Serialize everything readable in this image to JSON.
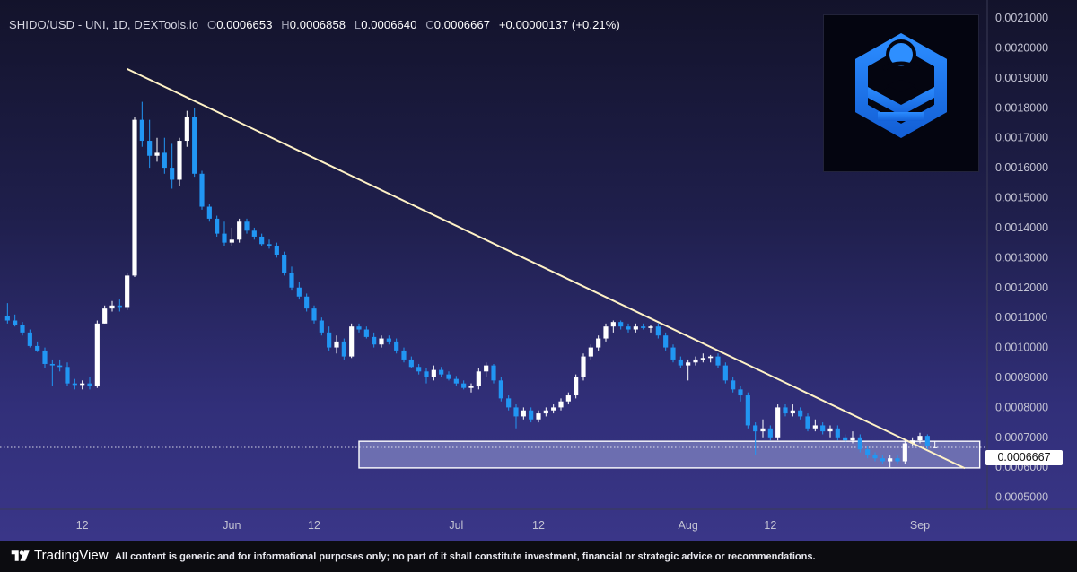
{
  "header": {
    "symbol": "SHIDO/USD - UNI, 1D, DEXTools.io",
    "open_key": "O",
    "open": "0.0006653",
    "high_key": "H",
    "high": "0.0006858",
    "low_key": "L",
    "low": "0.0006640",
    "close_key": "C",
    "close": "0.0006667",
    "change": "+0.00000137 (+0.21%)"
  },
  "current_price_label": "0.0006667",
  "footer": {
    "brand": "TradingView",
    "disclaimer": "All content is generic and for informational purposes only; no part of it shall constitute investment, financial or strategic advice or recommendations."
  },
  "colors": {
    "up": "#ffffff",
    "down": "#2196f3",
    "trendline": "#fff2c6",
    "zone_fill": "#9aa0d8",
    "logo_blue": "#1b7ff0"
  },
  "chart_data": {
    "type": "candlestick",
    "title": "SHIDO/USD - UNI, 1D, DEXTools.io",
    "y_axis": {
      "ylim": [
        0.00046,
        0.00216
      ],
      "ticks": [
        "0.0005000",
        "0.0006000",
        "0.0007000",
        "0.0008000",
        "0.0009000",
        "0.0010000",
        "0.0011000",
        "0.0012000",
        "0.0013000",
        "0.0014000",
        "0.0015000",
        "0.0016000",
        "0.0017000",
        "0.0018000",
        "0.0019000",
        "0.0020000",
        "0.0021000"
      ]
    },
    "x_axis": {
      "ticks": [
        {
          "label": "12",
          "day": 10
        },
        {
          "label": "Jun",
          "day": 30
        },
        {
          "label": "12",
          "day": 41
        },
        {
          "label": "Jul",
          "day": 60
        },
        {
          "label": "12",
          "day": 71
        },
        {
          "label": "Aug",
          "day": 91
        },
        {
          "label": "12",
          "day": 102
        },
        {
          "label": "Sep",
          "day": 122
        }
      ],
      "xlim": [
        -1,
        131
      ]
    },
    "candles": [
      {
        "o": 0.001105,
        "h": 0.001148,
        "l": 0.00108,
        "c": 0.00109
      },
      {
        "o": 0.00109,
        "h": 0.00111,
        "l": 0.00107,
        "c": 0.001075
      },
      {
        "o": 0.001075,
        "h": 0.001085,
        "l": 0.00104,
        "c": 0.00105
      },
      {
        "o": 0.00105,
        "h": 0.00106,
        "l": 0.001,
        "c": 0.001005
      },
      {
        "o": 0.001005,
        "h": 0.00102,
        "l": 0.000985,
        "c": 0.00099
      },
      {
        "o": 0.00099,
        "h": 0.001,
        "l": 0.00093,
        "c": 0.000945
      },
      {
        "o": 0.000945,
        "h": 0.00096,
        "l": 0.00087,
        "c": 0.00094
      },
      {
        "o": 0.00094,
        "h": 0.00096,
        "l": 0.00092,
        "c": 0.000935
      },
      {
        "o": 0.000935,
        "h": 0.00095,
        "l": 0.00087,
        "c": 0.00088
      },
      {
        "o": 0.00088,
        "h": 0.000895,
        "l": 0.00086,
        "c": 0.000875
      },
      {
        "o": 0.000875,
        "h": 0.00089,
        "l": 0.00086,
        "c": 0.00088
      },
      {
        "o": 0.00088,
        "h": 0.0009,
        "l": 0.00086,
        "c": 0.00087
      },
      {
        "o": 0.00087,
        "h": 0.00109,
        "l": 0.000865,
        "c": 0.00108
      },
      {
        "o": 0.00108,
        "h": 0.00114,
        "l": 0.00108,
        "c": 0.00113
      },
      {
        "o": 0.00113,
        "h": 0.001155,
        "l": 0.00112,
        "c": 0.00114
      },
      {
        "o": 0.00114,
        "h": 0.00116,
        "l": 0.00112,
        "c": 0.001135
      },
      {
        "o": 0.001135,
        "h": 0.00125,
        "l": 0.001125,
        "c": 0.00124
      },
      {
        "o": 0.00124,
        "h": 0.00177,
        "l": 0.001235,
        "c": 0.00176
      },
      {
        "o": 0.00176,
        "h": 0.00182,
        "l": 0.00167,
        "c": 0.00169
      },
      {
        "o": 0.00169,
        "h": 0.00176,
        "l": 0.0016,
        "c": 0.00164
      },
      {
        "o": 0.00164,
        "h": 0.0017,
        "l": 0.00162,
        "c": 0.00165
      },
      {
        "o": 0.00165,
        "h": 0.0017,
        "l": 0.00158,
        "c": 0.0016
      },
      {
        "o": 0.0016,
        "h": 0.00168,
        "l": 0.00153,
        "c": 0.00156
      },
      {
        "o": 0.00156,
        "h": 0.0017,
        "l": 0.00154,
        "c": 0.00169
      },
      {
        "o": 0.00169,
        "h": 0.00179,
        "l": 0.00167,
        "c": 0.00177
      },
      {
        "o": 0.00177,
        "h": 0.0018,
        "l": 0.00157,
        "c": 0.00158
      },
      {
        "o": 0.00158,
        "h": 0.00159,
        "l": 0.00146,
        "c": 0.00147
      },
      {
        "o": 0.00147,
        "h": 0.00148,
        "l": 0.00142,
        "c": 0.00143
      },
      {
        "o": 0.00143,
        "h": 0.00144,
        "l": 0.00137,
        "c": 0.00138
      },
      {
        "o": 0.00138,
        "h": 0.00142,
        "l": 0.00134,
        "c": 0.00135
      },
      {
        "o": 0.00135,
        "h": 0.0014,
        "l": 0.00134,
        "c": 0.00136
      },
      {
        "o": 0.00136,
        "h": 0.00143,
        "l": 0.00135,
        "c": 0.00142
      },
      {
        "o": 0.00142,
        "h": 0.00143,
        "l": 0.00138,
        "c": 0.00139
      },
      {
        "o": 0.00139,
        "h": 0.0014,
        "l": 0.00136,
        "c": 0.00137
      },
      {
        "o": 0.00137,
        "h": 0.00138,
        "l": 0.00134,
        "c": 0.001345
      },
      {
        "o": 0.001345,
        "h": 0.00136,
        "l": 0.00133,
        "c": 0.00134
      },
      {
        "o": 0.00134,
        "h": 0.00135,
        "l": 0.0013,
        "c": 0.00131
      },
      {
        "o": 0.00131,
        "h": 0.00132,
        "l": 0.00124,
        "c": 0.00125
      },
      {
        "o": 0.00125,
        "h": 0.00127,
        "l": 0.00119,
        "c": 0.0012
      },
      {
        "o": 0.0012,
        "h": 0.00122,
        "l": 0.00116,
        "c": 0.00117
      },
      {
        "o": 0.00117,
        "h": 0.00118,
        "l": 0.00112,
        "c": 0.00113
      },
      {
        "o": 0.00113,
        "h": 0.00114,
        "l": 0.00108,
        "c": 0.00109
      },
      {
        "o": 0.00109,
        "h": 0.0011,
        "l": 0.00104,
        "c": 0.00105
      },
      {
        "o": 0.00105,
        "h": 0.00107,
        "l": 0.00099,
        "c": 0.001
      },
      {
        "o": 0.001,
        "h": 0.00104,
        "l": 0.00098,
        "c": 0.00102
      },
      {
        "o": 0.00102,
        "h": 0.00103,
        "l": 0.00096,
        "c": 0.00097
      },
      {
        "o": 0.00097,
        "h": 0.00108,
        "l": 0.000965,
        "c": 0.00107
      },
      {
        "o": 0.00107,
        "h": 0.00108,
        "l": 0.00105,
        "c": 0.00106
      },
      {
        "o": 0.00106,
        "h": 0.00107,
        "l": 0.00103,
        "c": 0.001035
      },
      {
        "o": 0.001035,
        "h": 0.00105,
        "l": 0.001,
        "c": 0.00101
      },
      {
        "o": 0.00101,
        "h": 0.00104,
        "l": 0.001,
        "c": 0.00103
      },
      {
        "o": 0.00103,
        "h": 0.00104,
        "l": 0.00101,
        "c": 0.00102
      },
      {
        "o": 0.00102,
        "h": 0.00103,
        "l": 0.00098,
        "c": 0.00099
      },
      {
        "o": 0.00099,
        "h": 0.001,
        "l": 0.00095,
        "c": 0.00096
      },
      {
        "o": 0.00096,
        "h": 0.00097,
        "l": 0.00093,
        "c": 0.000935
      },
      {
        "o": 0.000935,
        "h": 0.000945,
        "l": 0.00091,
        "c": 0.00092
      },
      {
        "o": 0.00092,
        "h": 0.00093,
        "l": 0.00088,
        "c": 0.0009
      },
      {
        "o": 0.0009,
        "h": 0.00094,
        "l": 0.00089,
        "c": 0.000925
      },
      {
        "o": 0.000925,
        "h": 0.000935,
        "l": 0.0009,
        "c": 0.00091
      },
      {
        "o": 0.00091,
        "h": 0.00092,
        "l": 0.00089,
        "c": 0.000895
      },
      {
        "o": 0.000895,
        "h": 0.000905,
        "l": 0.00087,
        "c": 0.00088
      },
      {
        "o": 0.00088,
        "h": 0.00089,
        "l": 0.00086,
        "c": 0.000865
      },
      {
        "o": 0.000865,
        "h": 0.00088,
        "l": 0.00085,
        "c": 0.00087
      },
      {
        "o": 0.00087,
        "h": 0.00093,
        "l": 0.00086,
        "c": 0.00092
      },
      {
        "o": 0.00092,
        "h": 0.00095,
        "l": 0.0009,
        "c": 0.00094
      },
      {
        "o": 0.00094,
        "h": 0.000945,
        "l": 0.00088,
        "c": 0.00089
      },
      {
        "o": 0.00089,
        "h": 0.0009,
        "l": 0.00082,
        "c": 0.00083
      },
      {
        "o": 0.00083,
        "h": 0.00084,
        "l": 0.00079,
        "c": 0.0008
      },
      {
        "o": 0.0008,
        "h": 0.00081,
        "l": 0.00073,
        "c": 0.00077
      },
      {
        "o": 0.00077,
        "h": 0.0008,
        "l": 0.00076,
        "c": 0.00079
      },
      {
        "o": 0.00079,
        "h": 0.0008,
        "l": 0.00075,
        "c": 0.00076
      },
      {
        "o": 0.00076,
        "h": 0.00079,
        "l": 0.00075,
        "c": 0.00078
      },
      {
        "o": 0.00078,
        "h": 0.0008,
        "l": 0.00077,
        "c": 0.00079
      },
      {
        "o": 0.00079,
        "h": 0.00081,
        "l": 0.00078,
        "c": 0.0008
      },
      {
        "o": 0.0008,
        "h": 0.00083,
        "l": 0.00079,
        "c": 0.00082
      },
      {
        "o": 0.00082,
        "h": 0.00085,
        "l": 0.00081,
        "c": 0.00084
      },
      {
        "o": 0.00084,
        "h": 0.00091,
        "l": 0.00083,
        "c": 0.0009
      },
      {
        "o": 0.0009,
        "h": 0.00098,
        "l": 0.00089,
        "c": 0.00097
      },
      {
        "o": 0.00097,
        "h": 0.00101,
        "l": 0.00096,
        "c": 0.001
      },
      {
        "o": 0.001,
        "h": 0.00104,
        "l": 0.00099,
        "c": 0.00103
      },
      {
        "o": 0.00103,
        "h": 0.00108,
        "l": 0.00102,
        "c": 0.00107
      },
      {
        "o": 0.00107,
        "h": 0.00109,
        "l": 0.00105,
        "c": 0.001085
      },
      {
        "o": 0.001085,
        "h": 0.00109,
        "l": 0.00106,
        "c": 0.00107
      },
      {
        "o": 0.00107,
        "h": 0.00108,
        "l": 0.00105,
        "c": 0.00106
      },
      {
        "o": 0.00106,
        "h": 0.00108,
        "l": 0.00105,
        "c": 0.00107
      },
      {
        "o": 0.00107,
        "h": 0.00108,
        "l": 0.00106,
        "c": 0.001065
      },
      {
        "o": 0.001065,
        "h": 0.001075,
        "l": 0.00105,
        "c": 0.00107
      },
      {
        "o": 0.00107,
        "h": 0.00108,
        "l": 0.00103,
        "c": 0.00104
      },
      {
        "o": 0.00104,
        "h": 0.00105,
        "l": 0.00099,
        "c": 0.001
      },
      {
        "o": 0.001,
        "h": 0.00101,
        "l": 0.00095,
        "c": 0.00096
      },
      {
        "o": 0.00096,
        "h": 0.00097,
        "l": 0.00093,
        "c": 0.00094
      },
      {
        "o": 0.00094,
        "h": 0.00096,
        "l": 0.00089,
        "c": 0.00095
      },
      {
        "o": 0.00095,
        "h": 0.00097,
        "l": 0.00094,
        "c": 0.00096
      },
      {
        "o": 0.00096,
        "h": 0.00098,
        "l": 0.00095,
        "c": 0.000965
      },
      {
        "o": 0.000965,
        "h": 0.000975,
        "l": 0.00095,
        "c": 0.00097
      },
      {
        "o": 0.00097,
        "h": 0.00098,
        "l": 0.00093,
        "c": 0.00094
      },
      {
        "o": 0.00094,
        "h": 0.00095,
        "l": 0.00088,
        "c": 0.00089
      },
      {
        "o": 0.00089,
        "h": 0.0009,
        "l": 0.00085,
        "c": 0.00086
      },
      {
        "o": 0.00086,
        "h": 0.00087,
        "l": 0.00082,
        "c": 0.00084
      },
      {
        "o": 0.00084,
        "h": 0.00085,
        "l": 0.00073,
        "c": 0.00074
      },
      {
        "o": 0.00074,
        "h": 0.00075,
        "l": 0.00064,
        "c": 0.00072
      },
      {
        "o": 0.00072,
        "h": 0.00076,
        "l": 0.0007,
        "c": 0.00073
      },
      {
        "o": 0.00073,
        "h": 0.00074,
        "l": 0.00069,
        "c": 0.0007
      },
      {
        "o": 0.0007,
        "h": 0.00081,
        "l": 0.00069,
        "c": 0.0008
      },
      {
        "o": 0.0008,
        "h": 0.00081,
        "l": 0.00077,
        "c": 0.00078
      },
      {
        "o": 0.00078,
        "h": 0.00081,
        "l": 0.00077,
        "c": 0.00079
      },
      {
        "o": 0.00079,
        "h": 0.0008,
        "l": 0.00076,
        "c": 0.00077
      },
      {
        "o": 0.00077,
        "h": 0.00078,
        "l": 0.00072,
        "c": 0.00073
      },
      {
        "o": 0.00073,
        "h": 0.00076,
        "l": 0.00072,
        "c": 0.00074
      },
      {
        "o": 0.00074,
        "h": 0.00075,
        "l": 0.00071,
        "c": 0.00072
      },
      {
        "o": 0.00072,
        "h": 0.00074,
        "l": 0.0007,
        "c": 0.00073
      },
      {
        "o": 0.00073,
        "h": 0.00074,
        "l": 0.00069,
        "c": 0.0007
      },
      {
        "o": 0.0007,
        "h": 0.00071,
        "l": 0.00068,
        "c": 0.00069
      },
      {
        "o": 0.00069,
        "h": 0.00072,
        "l": 0.00068,
        "c": 0.0007
      },
      {
        "o": 0.0007,
        "h": 0.00071,
        "l": 0.00065,
        "c": 0.00066
      },
      {
        "o": 0.00066,
        "h": 0.00067,
        "l": 0.00063,
        "c": 0.00064
      },
      {
        "o": 0.00064,
        "h": 0.00065,
        "l": 0.00062,
        "c": 0.00063
      },
      {
        "o": 0.00063,
        "h": 0.00064,
        "l": 0.00061,
        "c": 0.00062
      },
      {
        "o": 0.00062,
        "h": 0.00064,
        "l": 0.0006,
        "c": 0.00063
      },
      {
        "o": 0.00063,
        "h": 0.00064,
        "l": 0.00061,
        "c": 0.00062
      },
      {
        "o": 0.00062,
        "h": 0.00069,
        "l": 0.00061,
        "c": 0.00068
      },
      {
        "o": 0.00068,
        "h": 0.0007,
        "l": 0.00067,
        "c": 0.00069
      },
      {
        "o": 0.00069,
        "h": 0.000715,
        "l": 0.00068,
        "c": 0.000705
      },
      {
        "o": 0.000705,
        "h": 0.00071,
        "l": 0.00066,
        "c": 0.00067
      },
      {
        "o": 0.000665,
        "h": 0.000686,
        "l": 0.000664,
        "c": 0.000667
      }
    ],
    "trendline": {
      "from": {
        "day": 16,
        "price": 0.00193
      },
      "to": {
        "day": 128,
        "price": 0.000597
      }
    },
    "support_zone": {
      "day_start": 47,
      "day_end": 130,
      "price_low": 0.000598,
      "price_high": 0.000687
    },
    "current_price": 0.0006667
  }
}
